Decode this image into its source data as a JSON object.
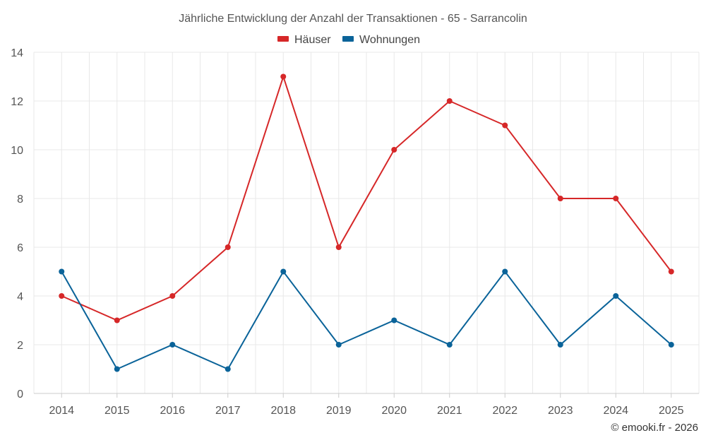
{
  "chart_data": {
    "type": "line",
    "title": "Jährliche Entwicklung der Anzahl der Transaktionen - 65 - Sarrancolin",
    "categories": [
      "2014",
      "2015",
      "2016",
      "2017",
      "2018",
      "2019",
      "2020",
      "2021",
      "2022",
      "2023",
      "2024",
      "2025"
    ],
    "series": [
      {
        "name": "Häuser",
        "color": "#d62728",
        "values": [
          4,
          3,
          4,
          6,
          13,
          6,
          10,
          12,
          11,
          8,
          8,
          5
        ]
      },
      {
        "name": "Wohnungen",
        "color": "#0a6399",
        "values": [
          5,
          1,
          2,
          1,
          5,
          2,
          3,
          2,
          5,
          2,
          4,
          2
        ]
      }
    ],
    "ylim": [
      0,
      14
    ],
    "yticks": [
      0,
      2,
      4,
      6,
      8,
      10,
      12,
      14
    ],
    "xlabel": "",
    "ylabel": "",
    "grid": true,
    "legend_position": "top-center"
  },
  "credit": "© emooki.fr - 2026"
}
